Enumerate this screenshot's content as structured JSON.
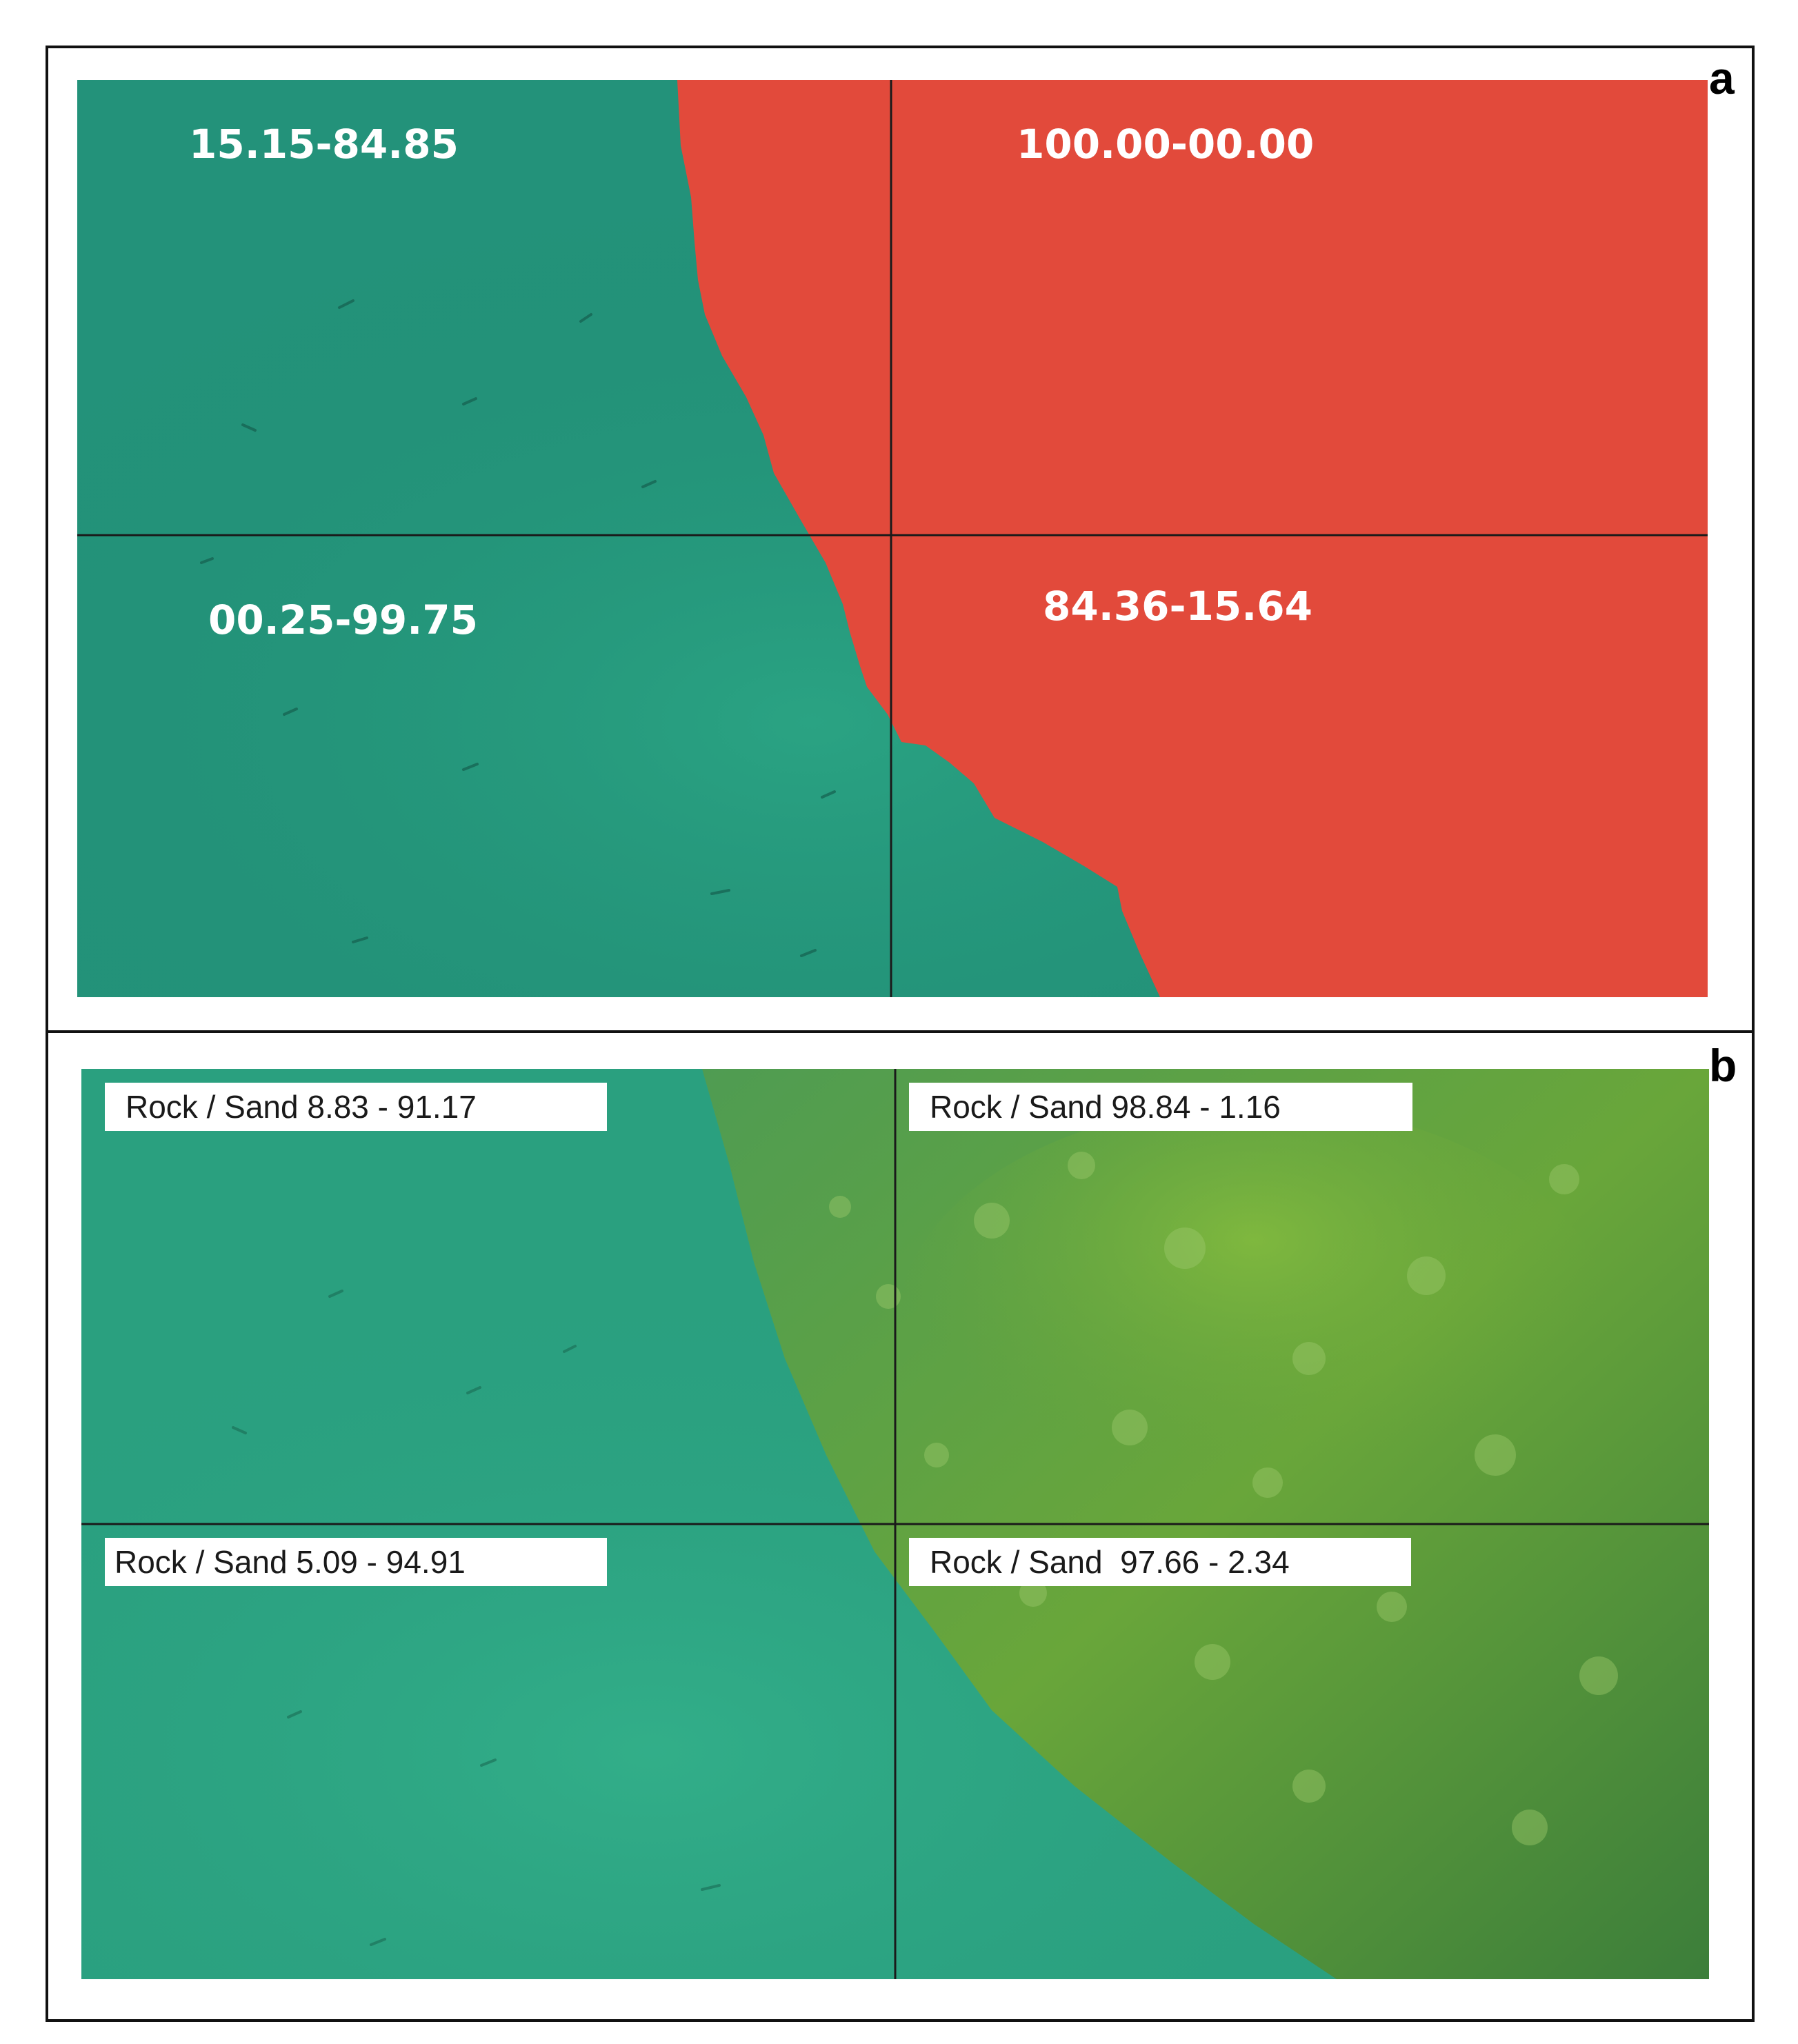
{
  "figure": {
    "panel_a": {
      "label": "a",
      "colors": {
        "sand": "#24957a",
        "rock": "#e24a3b",
        "grid": "#1a1a1a"
      },
      "cells": {
        "top_left": "15.15-84.85",
        "top_right": "100.00-00.00",
        "bottom_left": "00.25-99.75",
        "bottom_right": "84.36-15.64"
      }
    },
    "panel_b": {
      "label": "b",
      "colors": {
        "water": "#2ba482",
        "algae": "#5f9c3a",
        "grid": "#1a1a1a"
      },
      "cells": {
        "top_left": "Rock / Sand 8.83 - 91.17",
        "top_right": "Rock / Sand 98.84 - 1.16",
        "bottom_left": "Rock / Sand 5.09 - 94.91",
        "bottom_right": "Rock / Sand  97.66 - 2.34"
      }
    }
  }
}
